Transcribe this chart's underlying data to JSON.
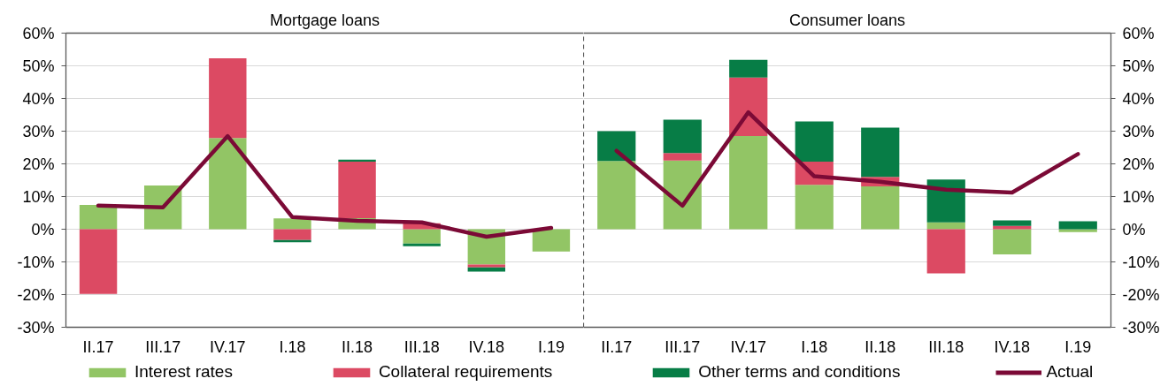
{
  "chart_data": [
    {
      "type": "bar",
      "title": "Mortgage loans",
      "categories": [
        "II.17",
        "III.17",
        "IV.17",
        "I.18",
        "II.18",
        "III.18",
        "IV.18",
        "I.19"
      ],
      "stacked": true,
      "grid": "y",
      "legend": "bottom",
      "ylim": [
        -30,
        60
      ],
      "yticks": [
        {
          "value": -30,
          "label": "-30%"
        },
        {
          "value": -20,
          "label": "-20%"
        },
        {
          "value": -10,
          "label": "-10%"
        },
        {
          "value": 0,
          "label": "0%"
        },
        {
          "value": 10,
          "label": "10%"
        },
        {
          "value": 20,
          "label": "20%"
        },
        {
          "value": 30,
          "label": "30%"
        },
        {
          "value": 40,
          "label": "40%"
        },
        {
          "value": 50,
          "label": "50%"
        },
        {
          "value": 60,
          "label": "60%"
        }
      ],
      "series": [
        {
          "name": "Interest rates",
          "color": "#92c565",
          "values": [
            7.4,
            13.4,
            27.9,
            3.3,
            3.4,
            -4.4,
            -10.8,
            -6.8
          ]
        },
        {
          "name": "Collateral requirements",
          "color": "#dc4a63",
          "values": [
            -19.8,
            null,
            24.4,
            -3.3,
            17.3,
            1.8,
            -0.9,
            null
          ]
        },
        {
          "name": "Other terms and conditions",
          "color": "#077d46",
          "values": [
            null,
            null,
            null,
            -0.7,
            0.6,
            -0.8,
            -1.3,
            null
          ]
        },
        {
          "name": "Actual",
          "type": "line",
          "color": "#7b0a36",
          "values": [
            7.2,
            6.7,
            28.5,
            3.7,
            2.6,
            2.1,
            -2.3,
            0.4
          ]
        }
      ]
    },
    {
      "type": "bar",
      "title": "Consumer loans",
      "categories": [
        "II.17",
        "III.17",
        "IV.17",
        "I.18",
        "II.18",
        "III.18",
        "IV.18",
        "I.19"
      ],
      "stacked": true,
      "grid": "y",
      "y2lim": [
        -30,
        60
      ],
      "y2ticks": [
        {
          "value": -30,
          "label": "-30%"
        },
        {
          "value": -20,
          "label": "-20%"
        },
        {
          "value": -10,
          "label": "-10%"
        },
        {
          "value": 0,
          "label": "0%"
        },
        {
          "value": 10,
          "label": "10%"
        },
        {
          "value": 20,
          "label": "20%"
        },
        {
          "value": 30,
          "label": "30%"
        },
        {
          "value": 40,
          "label": "40%"
        },
        {
          "value": 50,
          "label": "50%"
        },
        {
          "value": 60,
          "label": "60%"
        }
      ],
      "series": [
        {
          "color": "#92c565",
          "axis": "y2",
          "values": [
            20.9,
            21.0,
            28.5,
            13.6,
            13.1,
            2.1,
            -7.7,
            -0.9
          ]
        },
        {
          "color": "#dc4a63",
          "axis": "y2",
          "values": [
            null,
            2.3,
            17.9,
            7.1,
            2.9,
            -13.5,
            1.0,
            null
          ]
        },
        {
          "color": "#077d46",
          "axis": "y2",
          "values": [
            9.1,
            10.2,
            5.4,
            12.3,
            15.1,
            13.1,
            1.7,
            2.4
          ]
        },
        {
          "type": "line",
          "color": "#7b0a36",
          "axis": "y2",
          "values": [
            24.0,
            7.2,
            35.8,
            16.2,
            14.5,
            12.1,
            11.2,
            23.0
          ]
        }
      ]
    }
  ]
}
